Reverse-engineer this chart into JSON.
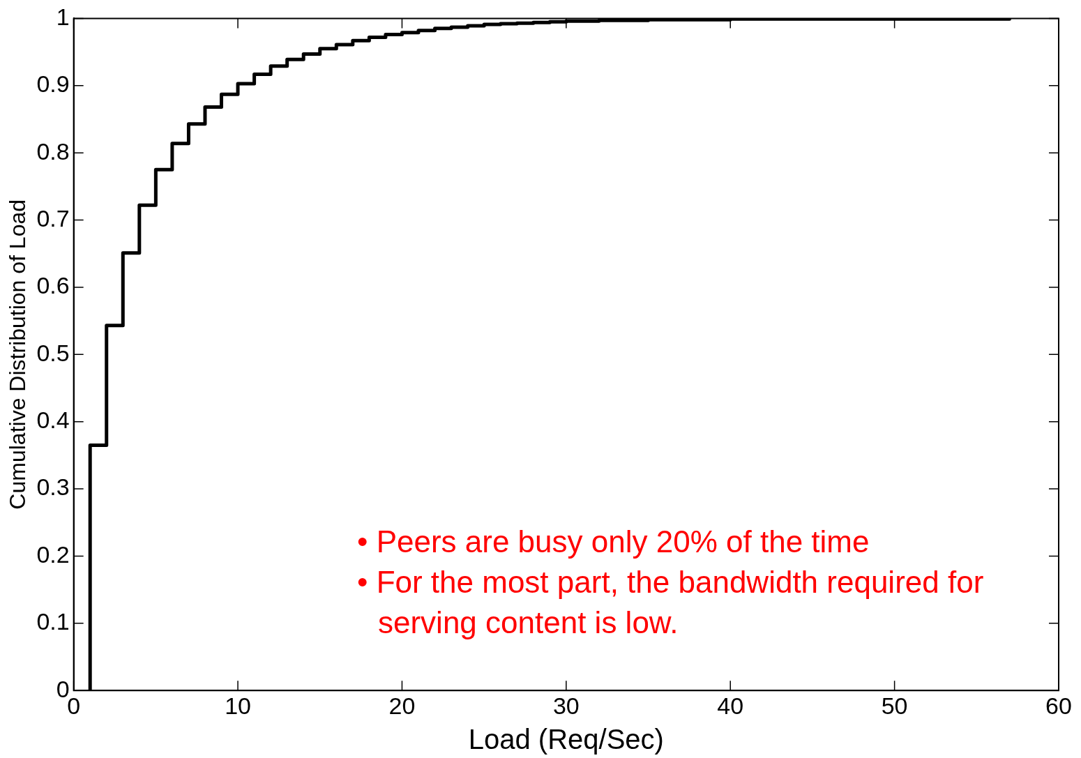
{
  "chart_data": {
    "type": "step",
    "xlabel": "Load (Req/Sec)",
    "ylabel": "Cumulative Distribution of Load",
    "x": [
      1,
      1,
      2,
      3,
      4,
      5,
      6,
      7,
      8,
      9,
      10,
      11,
      12,
      13,
      14,
      15,
      16,
      17,
      18,
      19,
      20,
      21,
      22,
      23,
      24,
      25,
      26,
      27,
      28,
      29,
      30,
      32,
      35,
      40,
      57
    ],
    "values": [
      0,
      0.365,
      0.543,
      0.651,
      0.722,
      0.775,
      0.814,
      0.843,
      0.868,
      0.887,
      0.903,
      0.917,
      0.929,
      0.939,
      0.947,
      0.955,
      0.961,
      0.967,
      0.972,
      0.976,
      0.979,
      0.982,
      0.985,
      0.987,
      0.989,
      0.991,
      0.992,
      0.993,
      0.994,
      0.995,
      0.996,
      0.997,
      0.998,
      0.999,
      1.0
    ],
    "color": "#000000",
    "xlim": [
      0,
      60
    ],
    "xticks": [
      0,
      10,
      20,
      30,
      40,
      50,
      60
    ],
    "ylim": [
      0,
      1
    ],
    "yticks": [
      0,
      0.1,
      0.2,
      0.3,
      0.4,
      0.5,
      0.6,
      0.7,
      0.8,
      0.9,
      1
    ],
    "grid": false,
    "legend": false,
    "marker": "none",
    "line_style": "solid",
    "annotations": [
      "• Peers are busy only 20% of the time",
      "• For the most part, the bandwidth required for serving content is low."
    ]
  }
}
